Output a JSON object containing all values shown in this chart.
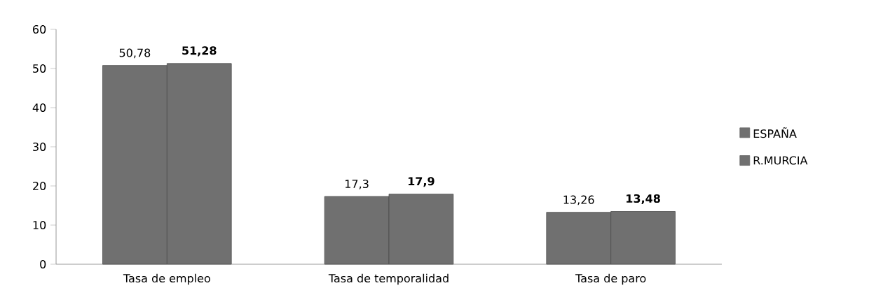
{
  "chart_data": {
    "type": "bar",
    "categories": [
      "Tasa de empleo",
      "Tasa de temporalidad",
      "Tasa de paro"
    ],
    "series": [
      {
        "name": "ESPAÑA",
        "color": "#707070",
        "values": [
          50.78,
          17.3,
          13.26
        ],
        "value_labels": [
          "50,78",
          "17,3",
          "13,26"
        ]
      },
      {
        "name": "R.MURCIA",
        "color": "#707070",
        "values": [
          51.28,
          17.9,
          13.48
        ],
        "value_labels": [
          "**51,28**",
          "**17,9**",
          "**13,48**"
        ]
      }
    ],
    "ylim": [
      0,
      60
    ],
    "yticks": [
      0,
      10,
      20,
      30,
      40,
      50,
      60
    ],
    "grid": false,
    "legend": "right"
  }
}
